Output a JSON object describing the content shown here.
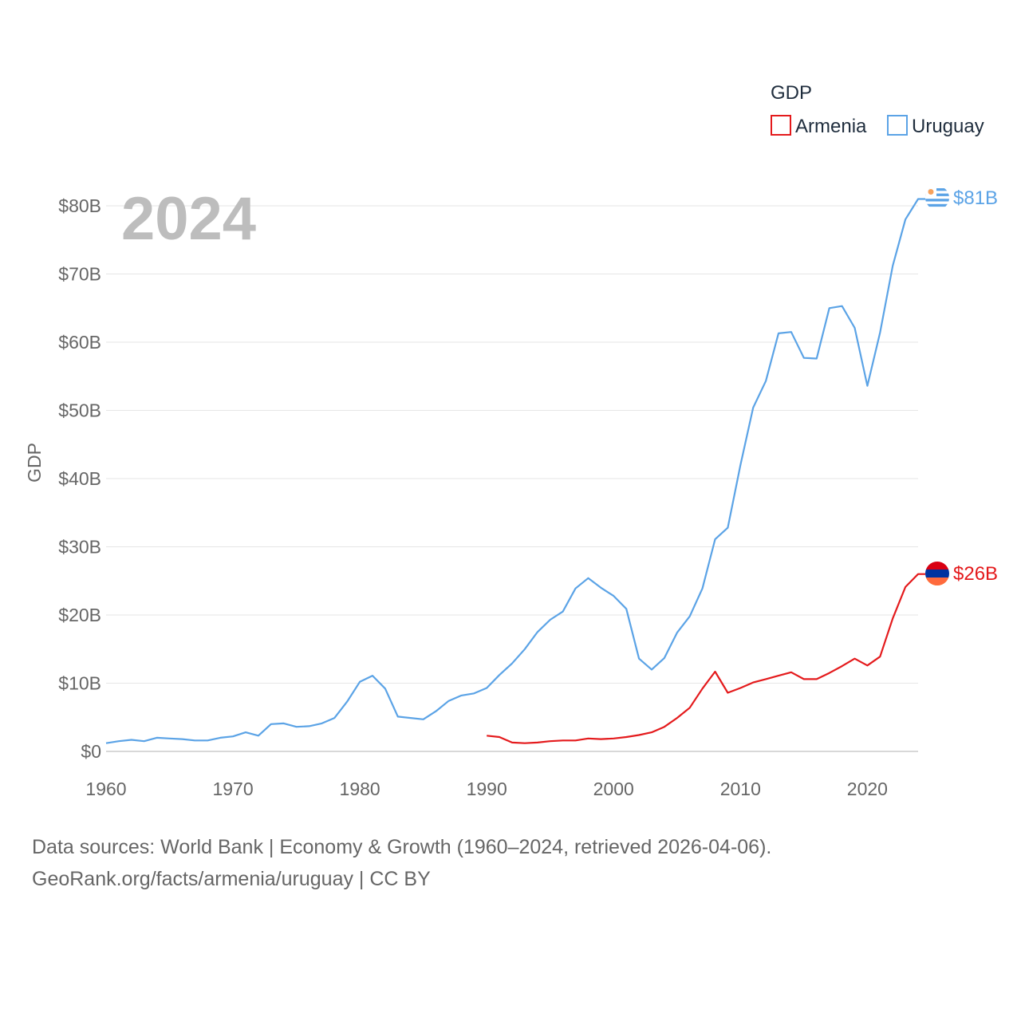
{
  "legend": {
    "title": "GDP",
    "items": [
      {
        "name": "Armenia",
        "color": "#e41a1c"
      },
      {
        "name": "Uruguay",
        "color": "#5ba3e6"
      }
    ]
  },
  "year_label": "2024",
  "footer": {
    "line1": "Data sources: World Bank | Economy & Growth (1960–2024, retrieved 2026-04-06).",
    "line2": "GeoRank.org/facts/armenia/uruguay | CC BY"
  },
  "chart_data": {
    "type": "line",
    "title": "GDP",
    "xlabel": "",
    "ylabel": "GDP",
    "xlim": [
      1960,
      2024
    ],
    "ylim": [
      0,
      80
    ],
    "y_unit": "billion USD",
    "x_ticks": [
      1960,
      1970,
      1980,
      1990,
      2000,
      2010,
      2020
    ],
    "x_tick_labels": [
      "1960",
      "1970",
      "1980",
      "1990",
      "2000",
      "2010",
      "2020"
    ],
    "y_ticks": [
      0,
      10,
      20,
      30,
      40,
      50,
      60,
      70,
      80
    ],
    "y_tick_labels": [
      "$0",
      "$10B",
      "$20B",
      "$30B",
      "$40B",
      "$50B",
      "$60B",
      "$70B",
      "$80B"
    ],
    "grid": true,
    "legend_position": "top-right",
    "series": [
      {
        "name": "Armenia",
        "color": "#e41a1c",
        "end_label": "$26B",
        "x": [
          1990,
          1991,
          1992,
          1993,
          1994,
          1995,
          1996,
          1997,
          1998,
          1999,
          2000,
          2001,
          2002,
          2003,
          2004,
          2005,
          2006,
          2007,
          2008,
          2009,
          2010,
          2011,
          2012,
          2013,
          2014,
          2015,
          2016,
          2017,
          2018,
          2019,
          2020,
          2021,
          2022,
          2023,
          2024
        ],
        "values": [
          2.3,
          2.1,
          1.3,
          1.2,
          1.3,
          1.5,
          1.6,
          1.6,
          1.9,
          1.8,
          1.9,
          2.1,
          2.4,
          2.8,
          3.6,
          4.9,
          6.4,
          9.2,
          11.7,
          8.6,
          9.3,
          10.1,
          10.6,
          11.1,
          11.6,
          10.6,
          10.6,
          11.5,
          12.5,
          13.6,
          12.6,
          13.9,
          19.5,
          24.1,
          26.0
        ]
      },
      {
        "name": "Uruguay",
        "color": "#5ba3e6",
        "end_label": "$81B",
        "x": [
          1960,
          1961,
          1962,
          1963,
          1964,
          1965,
          1966,
          1967,
          1968,
          1969,
          1970,
          1971,
          1972,
          1973,
          1974,
          1975,
          1976,
          1977,
          1978,
          1979,
          1980,
          1981,
          1982,
          1983,
          1984,
          1985,
          1986,
          1987,
          1988,
          1989,
          1990,
          1991,
          1992,
          1993,
          1994,
          1995,
          1996,
          1997,
          1998,
          1999,
          2000,
          2001,
          2002,
          2003,
          2004,
          2005,
          2006,
          2007,
          2008,
          2009,
          2010,
          2011,
          2012,
          2013,
          2014,
          2015,
          2016,
          2017,
          2018,
          2019,
          2020,
          2021,
          2022,
          2023,
          2024
        ],
        "values": [
          1.2,
          1.5,
          1.7,
          1.5,
          2.0,
          1.9,
          1.8,
          1.6,
          1.6,
          2.0,
          2.2,
          2.8,
          2.3,
          4.0,
          4.1,
          3.6,
          3.7,
          4.1,
          4.9,
          7.3,
          10.2,
          11.1,
          9.2,
          5.1,
          4.9,
          4.7,
          5.9,
          7.4,
          8.2,
          8.5,
          9.3,
          11.2,
          12.9,
          15.0,
          17.5,
          19.3,
          20.5,
          23.9,
          25.4,
          24.0,
          22.8,
          20.9,
          13.6,
          12.0,
          13.7,
          17.4,
          19.8,
          23.9,
          31.1,
          32.8,
          42.0,
          50.4,
          54.3,
          61.3,
          61.5,
          57.7,
          57.6,
          65.0,
          65.3,
          62.1,
          53.6,
          61.4,
          71.2,
          78.0,
          81.0
        ]
      }
    ]
  }
}
